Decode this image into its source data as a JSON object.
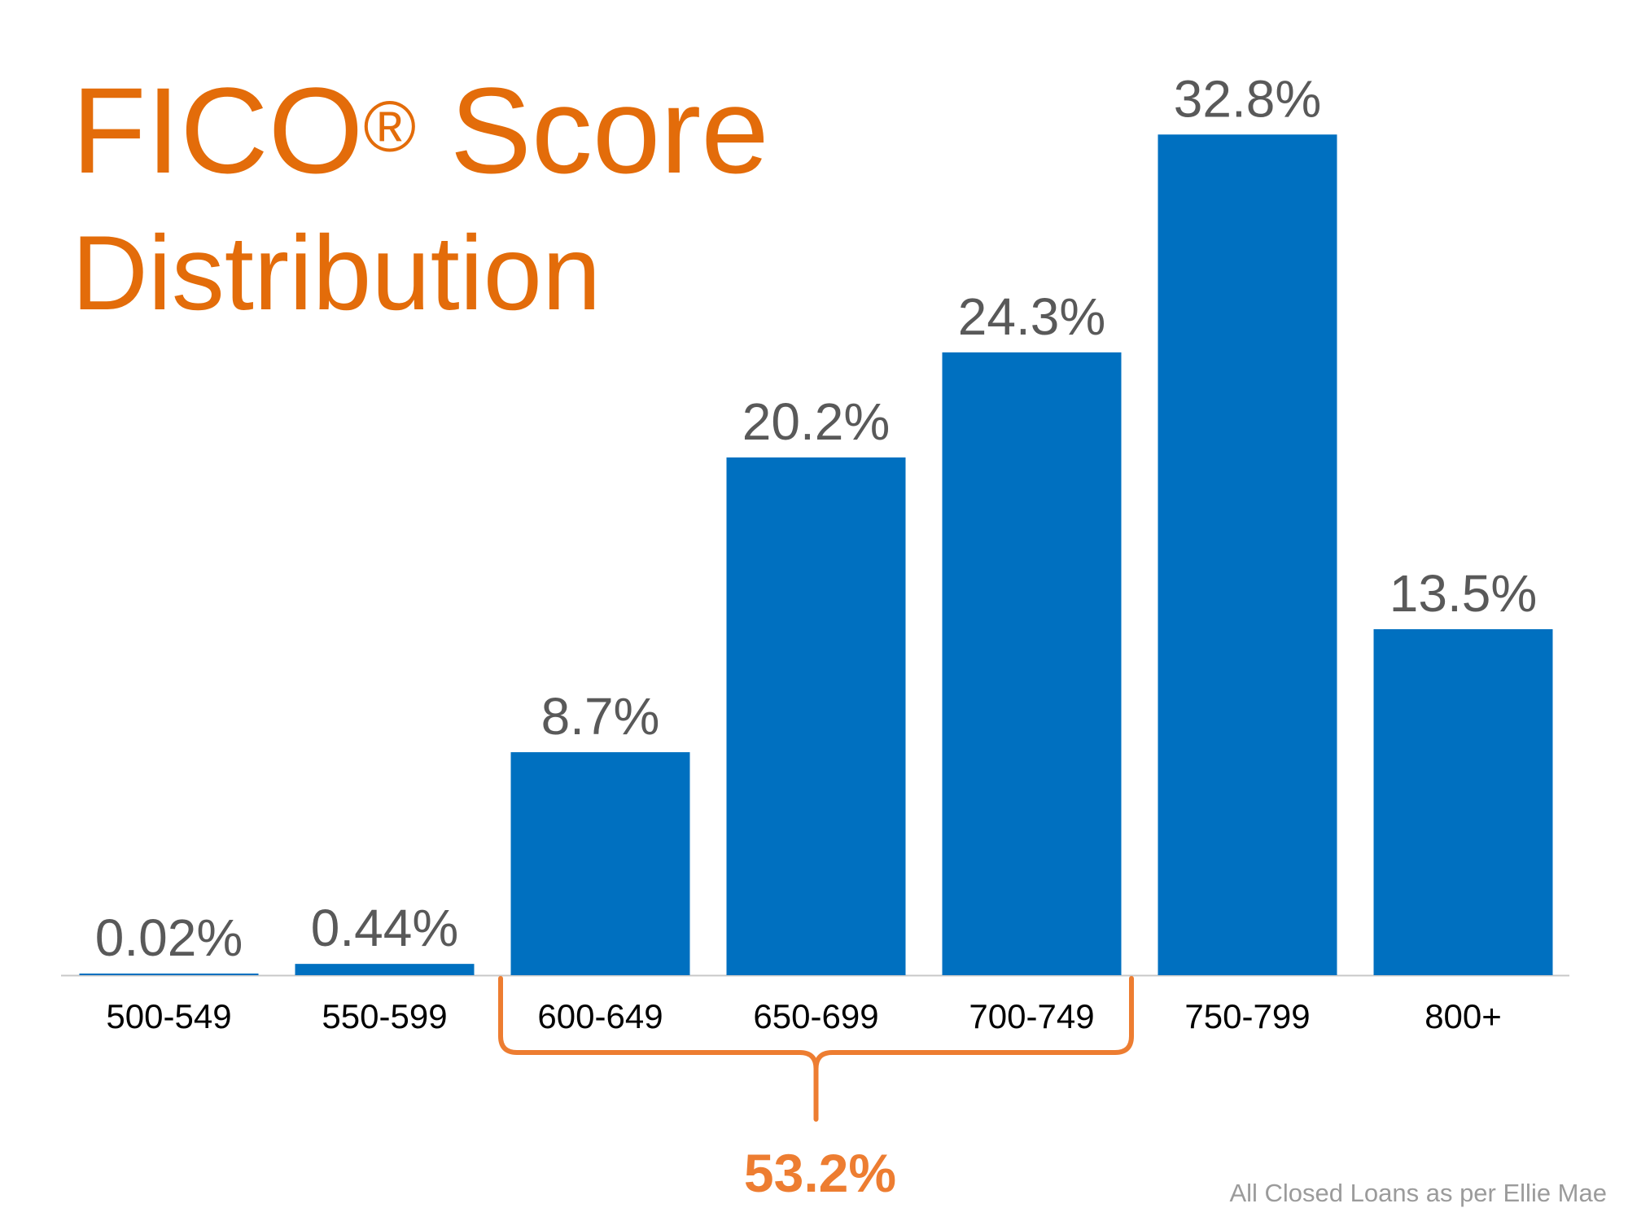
{
  "chart_data": {
    "type": "bar",
    "title_main": "FICO",
    "title_mark": "®",
    "title_main_suffix": " Score",
    "subtitle": "Distribution",
    "categories": [
      "500-549",
      "550-599",
      "600-649",
      "650-699",
      "700-749",
      "750-799",
      "800+"
    ],
    "values": [
      0.02,
      0.44,
      8.7,
      20.2,
      24.3,
      32.8,
      13.5
    ],
    "value_labels": [
      "0.02%",
      "0.44%",
      "8.7%",
      "20.2%",
      "24.3%",
      "32.8%",
      "13.5%"
    ],
    "ylim": [
      0,
      35
    ],
    "grid": false,
    "bracket": {
      "from_category": "600-649",
      "to_category": "700-749",
      "label": "53.2%"
    },
    "source": "All Closed Loans as per Ellie Mae",
    "colors": {
      "bar": "#0070C0",
      "title": "#E36C0A",
      "bracket": "#ED7D31",
      "value_label": "#595959",
      "category_label": "#000000",
      "axis": "#c8c8c8",
      "source": "#9b9b9b"
    }
  }
}
